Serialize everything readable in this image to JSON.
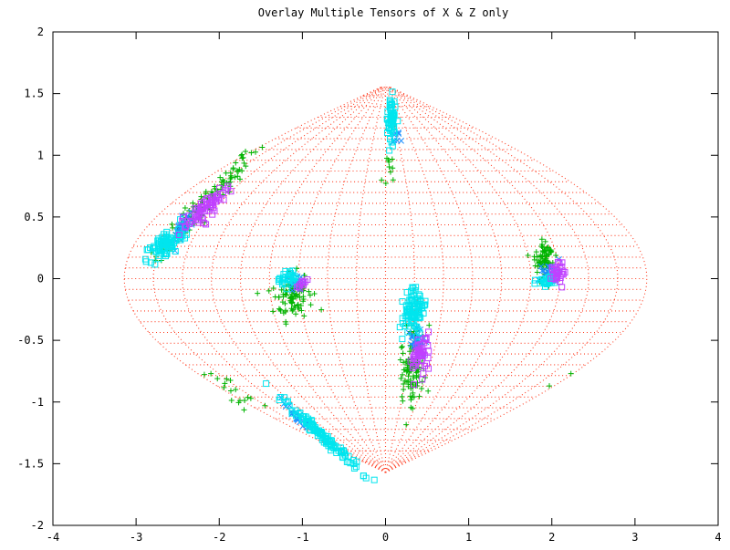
{
  "chart_data": {
    "type": "scatter",
    "title": "Overlay Multiple Tensors of X & Z only",
    "xlabel": "",
    "ylabel": "",
    "xlim": [
      -4,
      4
    ],
    "ylim": [
      -2,
      2
    ],
    "xticks": [
      "-4",
      "-3",
      "-2",
      "-1",
      "0",
      "1",
      "2",
      "3",
      "4"
    ],
    "yticks": [
      "2",
      "1.5",
      "1",
      "0.5",
      "0",
      "-0.5",
      "-1",
      "-1.5",
      "-2"
    ],
    "grid": false,
    "projection_grid": {
      "description_shown": "dotted sinusoidal projection graticule",
      "color": "#ff3b1f",
      "lat_max": 1.5708,
      "lon_max": 3.1416
    },
    "series": [
      {
        "marker": "plus",
        "color": "#00b400",
        "clusters": [
          {
            "cx": -2.15,
            "cy": 0.62,
            "angle": 0.62,
            "sx": 0.42,
            "sy": 0.05,
            "n": 120
          },
          {
            "cx": -1.12,
            "cy": -0.14,
            "angle": 0.2,
            "sx": 0.13,
            "sy": 0.1,
            "n": 90
          },
          {
            "cx": 0.32,
            "cy": -0.72,
            "angle": 1.45,
            "sx": 0.18,
            "sy": 0.07,
            "n": 110
          },
          {
            "cx": 1.92,
            "cy": 0.15,
            "angle": 1.2,
            "sx": 0.1,
            "sy": 0.07,
            "n": 80
          },
          {
            "cx": 0.05,
            "cy": 0.9,
            "angle": 1.3,
            "sx": 0.1,
            "sy": 0.05,
            "n": 10
          },
          {
            "cx": -1.85,
            "cy": -0.92,
            "angle": -0.5,
            "sx": 0.15,
            "sy": 0.04,
            "n": 14
          }
        ],
        "points": [
          [
            -2.1,
            -0.77
          ],
          [
            2.23,
            -0.77
          ],
          [
            1.97,
            -0.87
          ],
          [
            -1.45,
            -1.03
          ],
          [
            -1.62,
            -0.97
          ]
        ]
      },
      {
        "marker": "cross",
        "color": "#1e90ff",
        "clusters": [
          {
            "cx": -2.42,
            "cy": 0.42,
            "angle": 0.62,
            "sx": 0.1,
            "sy": 0.04,
            "n": 40
          },
          {
            "cx": -1.05,
            "cy": -1.12,
            "angle": -0.58,
            "sx": 0.1,
            "sy": 0.02,
            "n": 25
          },
          {
            "cx": 0.38,
            "cy": -0.5,
            "angle": 1.4,
            "sx": 0.08,
            "sy": 0.05,
            "n": 30
          },
          {
            "cx": 0.12,
            "cy": 1.15,
            "angle": 1.4,
            "sx": 0.04,
            "sy": 0.02,
            "n": 8
          },
          {
            "cx": 1.95,
            "cy": 0.05,
            "angle": 0.5,
            "sx": 0.06,
            "sy": 0.04,
            "n": 20
          },
          {
            "cx": -1.08,
            "cy": -0.02,
            "angle": 0.3,
            "sx": 0.06,
            "sy": 0.04,
            "n": 15
          }
        ],
        "points": []
      },
      {
        "marker": "square",
        "color": "#00e5ee",
        "clusters": [
          {
            "cx": -2.65,
            "cy": 0.27,
            "angle": 0.45,
            "sx": 0.14,
            "sy": 0.06,
            "n": 90
          },
          {
            "cx": 0.07,
            "cy": 1.3,
            "angle": 1.5,
            "sx": 0.1,
            "sy": 0.03,
            "n": 60
          },
          {
            "cx": 0.33,
            "cy": -0.28,
            "angle": 1.3,
            "sx": 0.1,
            "sy": 0.07,
            "n": 90
          },
          {
            "cx": -1.18,
            "cy": 0.0,
            "angle": 0.2,
            "sx": 0.06,
            "sy": 0.04,
            "n": 30
          },
          {
            "cx": 1.95,
            "cy": -0.02,
            "angle": 0.2,
            "sx": 0.08,
            "sy": 0.03,
            "n": 30
          },
          {
            "cx": -0.75,
            "cy": -1.28,
            "angle": -0.55,
            "sx": 0.3,
            "sy": 0.02,
            "n": 120
          }
        ],
        "points": []
      },
      {
        "marker": "square",
        "color": "#c040ff",
        "clusters": [
          {
            "cx": -2.15,
            "cy": 0.58,
            "angle": 0.55,
            "sx": 0.2,
            "sy": 0.04,
            "n": 70
          },
          {
            "cx": 0.42,
            "cy": -0.6,
            "angle": 1.3,
            "sx": 0.08,
            "sy": 0.05,
            "n": 50
          },
          {
            "cx": 2.08,
            "cy": 0.05,
            "angle": 0.9,
            "sx": 0.06,
            "sy": 0.04,
            "n": 30
          },
          {
            "cx": -1.02,
            "cy": -0.05,
            "angle": 0.5,
            "sx": 0.05,
            "sy": 0.02,
            "n": 10
          }
        ],
        "points": []
      }
    ]
  }
}
